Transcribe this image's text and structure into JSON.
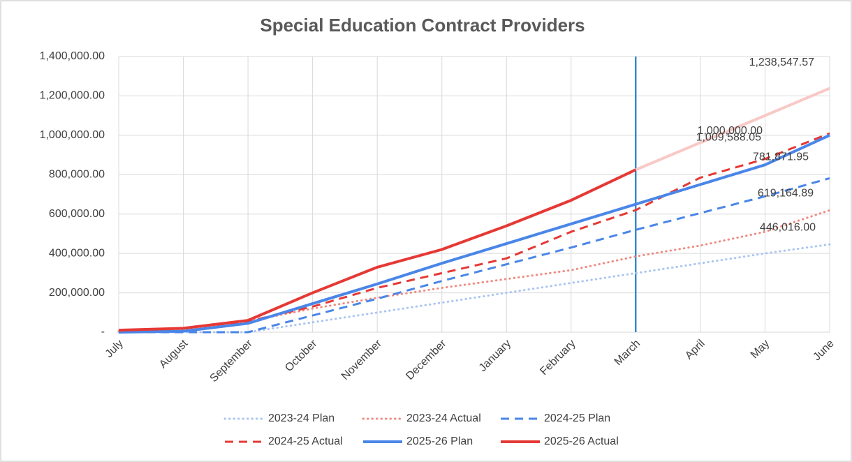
{
  "chart_data": {
    "type": "line",
    "title": "Special Education Contract Providers",
    "categories": [
      "July",
      "August",
      "September",
      "October",
      "November",
      "December",
      "January",
      "February",
      "March",
      "April",
      "May",
      "June"
    ],
    "ylim": [
      0,
      1400000
    ],
    "yticks": [
      {
        "value": 0,
        "label": "-"
      },
      {
        "value": 200000,
        "label": "200,000.00"
      },
      {
        "value": 400000,
        "label": "400,000.00"
      },
      {
        "value": 600000,
        "label": "600,000.00"
      },
      {
        "value": 800000,
        "label": "800,000.00"
      },
      {
        "value": 1000000,
        "label": "1,000,000.00"
      },
      {
        "value": 1200000,
        "label": "1,200,000.00"
      },
      {
        "value": 1400000,
        "label": "1,400,000.00"
      }
    ],
    "grid": true,
    "legend": "bottom",
    "vline": {
      "x": "March",
      "color": "#0070c0"
    },
    "series": [
      {
        "name": "2023-24 Plan",
        "color": "#a9c4f0",
        "style": "dotted",
        "values": [
          0,
          0,
          0,
          50000,
          100000,
          150000,
          200000,
          250000,
          300000,
          350000,
          400000,
          446016
        ],
        "value_labels": [
          null,
          null,
          null,
          null,
          null,
          null,
          null,
          null,
          null,
          null,
          null,
          "446,016.00"
        ]
      },
      {
        "name": "2023-24 Actual",
        "color": "#ee8a80",
        "style": "dotted",
        "values": [
          5000,
          15000,
          55000,
          120000,
          175000,
          225000,
          270000,
          315000,
          385000,
          440000,
          510000,
          619164.89
        ],
        "value_labels": [
          null,
          null,
          null,
          null,
          null,
          null,
          null,
          null,
          null,
          null,
          null,
          "619,164.89"
        ]
      },
      {
        "name": "2024-25 Plan",
        "color": "#4a86e8",
        "style": "dashed",
        "values": [
          0,
          0,
          0,
          85000,
          170000,
          260000,
          345000,
          430000,
          520000,
          605000,
          690000,
          781871.95
        ],
        "value_labels": [
          null,
          null,
          null,
          null,
          null,
          null,
          null,
          null,
          null,
          null,
          null,
          "781,871.95"
        ]
      },
      {
        "name": "2024-25 Actual",
        "color": "#e53935",
        "style": "dashed",
        "values": [
          10000,
          20000,
          55000,
          130000,
          225000,
          300000,
          375000,
          510000,
          620000,
          785000,
          880000,
          1009588.05
        ],
        "value_labels": [
          null,
          null,
          null,
          null,
          null,
          null,
          null,
          null,
          null,
          null,
          null,
          "1,009,588.05"
        ]
      },
      {
        "name": "2025-26 Plan",
        "color": "#4a86e8",
        "style": "solid",
        "values": [
          0,
          5000,
          45000,
          145000,
          245000,
          350000,
          450000,
          550000,
          650000,
          750000,
          850000,
          1000000
        ],
        "value_labels": [
          null,
          null,
          null,
          null,
          null,
          null,
          null,
          null,
          null,
          null,
          null,
          "1,000,000.00"
        ]
      },
      {
        "name": "2025-26 Actual",
        "color": "#e53935",
        "style": "solid",
        "values": [
          10000,
          20000,
          60000,
          200000,
          330000,
          420000,
          540000,
          670000,
          825000,
          null,
          null,
          null
        ]
      },
      {
        "color": "#f8c9c6",
        "style": "solid",
        "values": [
          null,
          null,
          null,
          null,
          null,
          null,
          null,
          null,
          825000,
          963000,
          1100000,
          1238547.57
        ],
        "value_labels": [
          null,
          null,
          null,
          null,
          null,
          null,
          null,
          null,
          null,
          null,
          null,
          "1,238,547.57"
        ]
      }
    ]
  }
}
